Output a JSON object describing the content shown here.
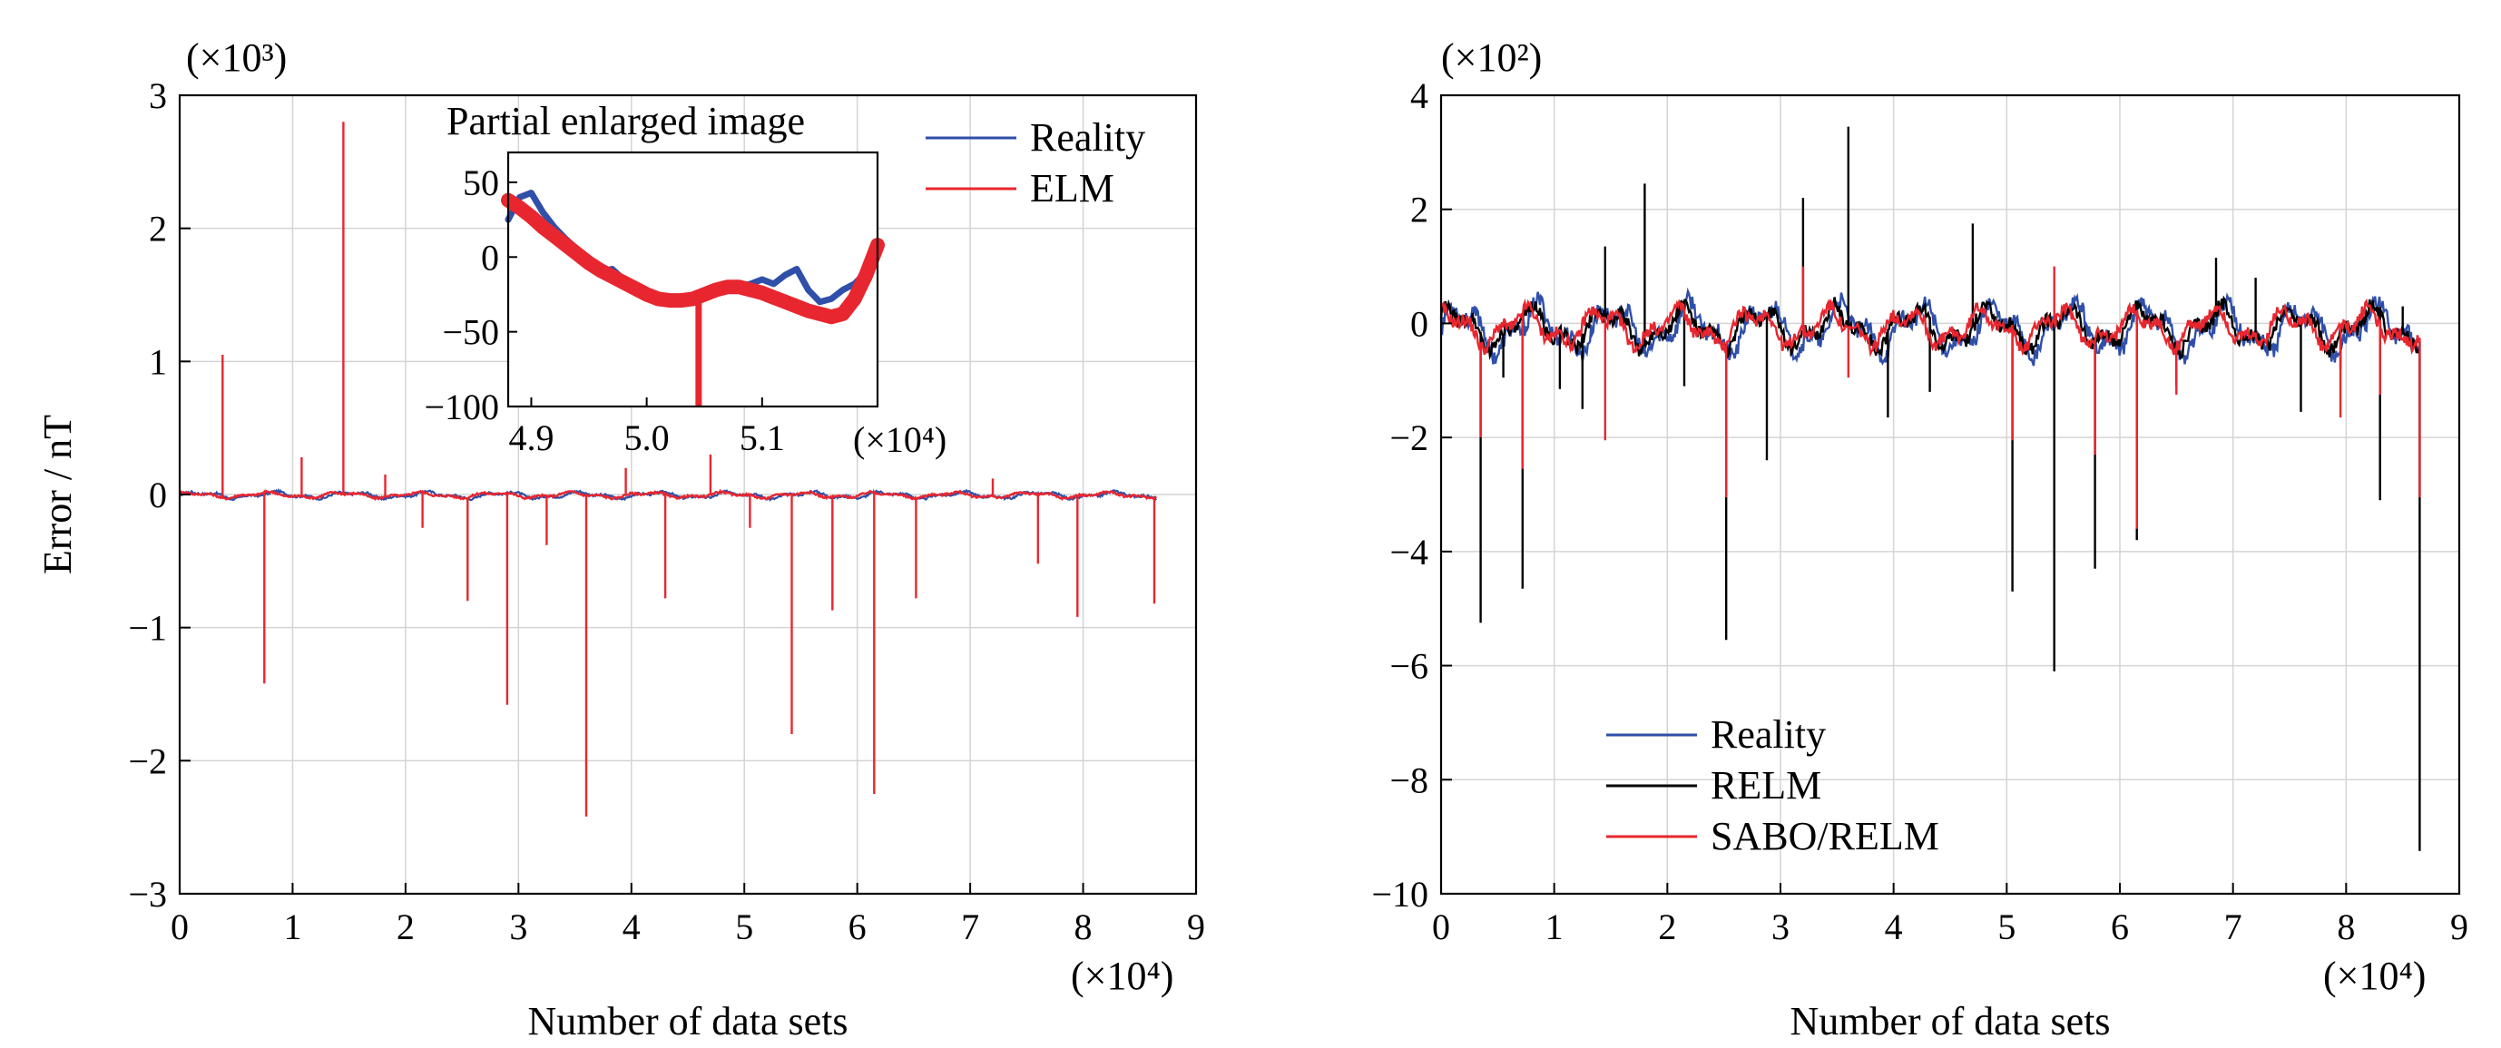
{
  "colors": {
    "reality": "#2f4fa8",
    "elm": "#e8262f",
    "relm": "#000000",
    "sabo": "#e8262f"
  },
  "chart_data": [
    {
      "type": "line",
      "title": "",
      "xlabel": "Number of data sets",
      "ylabel": "Error / nT",
      "x_multiplier": "(×10⁴)",
      "y_multiplier": "(×10³)",
      "xlim": [
        0,
        9
      ],
      "ylim": [
        -3,
        3
      ],
      "xticks": [
        "0",
        "1",
        "2",
        "3",
        "4",
        "5",
        "6",
        "7",
        "8",
        "9"
      ],
      "yticks": [
        "−3",
        "−2",
        "−1",
        "0",
        "1",
        "2",
        "3"
      ],
      "grid": true,
      "legend_position": "top-right",
      "series": [
        {
          "name": "Reality",
          "color": "#2f4fa8",
          "x_range": [
            0,
            8.65
          ],
          "base_amplitude": 0.035
        },
        {
          "name": "ELM",
          "color": "#e8262f",
          "x_range": [
            0,
            8.65
          ],
          "base_amplitude": 0.03,
          "spikes": [
            [
              0.38,
              1.05
            ],
            [
              0.75,
              -1.42
            ],
            [
              1.08,
              0.28
            ],
            [
              1.45,
              2.8
            ],
            [
              1.82,
              0.15
            ],
            [
              2.15,
              -0.25
            ],
            [
              2.55,
              -0.8
            ],
            [
              2.9,
              -1.58
            ],
            [
              3.25,
              -0.38
            ],
            [
              3.6,
              -2.42
            ],
            [
              3.95,
              0.2
            ],
            [
              4.3,
              -0.78
            ],
            [
              4.7,
              0.3
            ],
            [
              5.05,
              -0.25
            ],
            [
              5.42,
              -1.8
            ],
            [
              5.78,
              -0.87
            ],
            [
              6.15,
              -2.25
            ],
            [
              6.52,
              -0.78
            ],
            [
              7.2,
              0.12
            ],
            [
              7.6,
              -0.52
            ],
            [
              7.95,
              -0.92
            ],
            [
              8.63,
              -0.82
            ]
          ]
        }
      ],
      "inset": {
        "title": "Partial enlarged image",
        "x_multiplier": "(×10⁴)",
        "xlim": [
          4.88,
          5.2
        ],
        "ylim": [
          -100,
          70
        ],
        "xticks": [
          "4.9",
          "5.0",
          "5.1"
        ],
        "yticks": [
          "50",
          "0",
          "−50",
          "−100"
        ],
        "series": [
          {
            "name": "Reality",
            "color": "#2f4fa8",
            "points": [
              [
                4.88,
                25
              ],
              [
                4.89,
                40
              ],
              [
                4.9,
                43
              ],
              [
                4.91,
                30
              ],
              [
                4.92,
                20
              ],
              [
                4.93,
                12
              ],
              [
                4.94,
                5
              ],
              [
                4.95,
                -3
              ],
              [
                4.96,
                -10
              ],
              [
                4.97,
                -8
              ],
              [
                4.98,
                -15
              ],
              [
                4.99,
                -22
              ],
              [
                5.0,
                -25
              ],
              [
                5.01,
                -30
              ],
              [
                5.02,
                -28
              ],
              [
                5.03,
                -30
              ],
              [
                5.04,
                -28
              ],
              [
                5.05,
                -26
              ],
              [
                5.06,
                -24
              ],
              [
                5.07,
                -22
              ],
              [
                5.08,
                -20
              ],
              [
                5.09,
                -18
              ],
              [
                5.1,
                -15
              ],
              [
                5.11,
                -18
              ],
              [
                5.12,
                -12
              ],
              [
                5.13,
                -8
              ],
              [
                5.14,
                -22
              ],
              [
                5.15,
                -30
              ],
              [
                5.16,
                -28
              ],
              [
                5.17,
                -22
              ],
              [
                5.18,
                -18
              ],
              [
                5.19,
                -10
              ]
            ]
          },
          {
            "name": "ELM",
            "color": "#e8262f",
            "points": [
              [
                4.88,
                38
              ],
              [
                4.89,
                33
              ],
              [
                4.9,
                27
              ],
              [
                4.91,
                20
              ],
              [
                4.92,
                14
              ],
              [
                4.93,
                8
              ],
              [
                4.94,
                2
              ],
              [
                4.95,
                -4
              ],
              [
                4.96,
                -9
              ],
              [
                4.97,
                -13
              ],
              [
                4.98,
                -17
              ],
              [
                4.99,
                -21
              ],
              [
                5.0,
                -25
              ],
              [
                5.01,
                -28
              ],
              [
                5.02,
                -29
              ],
              [
                5.03,
                -29
              ],
              [
                5.04,
                -28
              ],
              [
                5.05,
                -25
              ],
              [
                5.06,
                -22
              ],
              [
                5.07,
                -20
              ],
              [
                5.08,
                -20
              ],
              [
                5.09,
                -22
              ],
              [
                5.1,
                -24
              ],
              [
                5.11,
                -27
              ],
              [
                5.12,
                -30
              ],
              [
                5.13,
                -33
              ],
              [
                5.14,
                -36
              ],
              [
                5.15,
                -38
              ],
              [
                5.16,
                -40
              ],
              [
                5.17,
                -38
              ],
              [
                5.18,
                -28
              ],
              [
                5.19,
                -12
              ],
              [
                5.2,
                8
              ]
            ],
            "spike": [
              5.045,
              -100
            ]
          }
        ]
      }
    },
    {
      "type": "line",
      "title": "",
      "xlabel": "Number of data sets",
      "ylabel": "",
      "x_multiplier": "(×10⁴)",
      "y_multiplier": "(×10²)",
      "xlim": [
        0,
        9
      ],
      "ylim": [
        -10,
        4
      ],
      "xticks": [
        "0",
        "1",
        "2",
        "3",
        "4",
        "5",
        "6",
        "7",
        "8",
        "9"
      ],
      "yticks": [
        "−10",
        "−8",
        "−6",
        "−4",
        "−2",
        "0",
        "2",
        "4"
      ],
      "grid": true,
      "legend_position": "bottom-left",
      "series": [
        {
          "name": "Reality",
          "color": "#2f4fa8",
          "x_range": [
            0,
            8.65
          ],
          "base_amplitude": 0.6
        },
        {
          "name": "RELM",
          "color": "#000000",
          "x_range": [
            0,
            8.65
          ],
          "base_amplitude": 0.5,
          "spikes": [
            [
              0.05,
              0.3
            ],
            [
              0.35,
              -5.25
            ],
            [
              0.55,
              -0.95
            ],
            [
              0.72,
              -4.65
            ],
            [
              1.05,
              -1.15
            ],
            [
              1.25,
              -1.5
            ],
            [
              1.45,
              1.35
            ],
            [
              1.8,
              2.45
            ],
            [
              2.15,
              -1.1
            ],
            [
              2.52,
              -5.55
            ],
            [
              2.88,
              -2.4
            ],
            [
              3.2,
              2.2
            ],
            [
              3.6,
              3.45
            ],
            [
              3.95,
              -1.65
            ],
            [
              4.32,
              -1.2
            ],
            [
              4.7,
              1.75
            ],
            [
              5.05,
              -4.7
            ],
            [
              5.42,
              -6.1
            ],
            [
              5.78,
              -4.3
            ],
            [
              6.15,
              -3.8
            ],
            [
              6.5,
              -1.1
            ],
            [
              6.85,
              1.15
            ],
            [
              7.2,
              0.8
            ],
            [
              7.6,
              -1.55
            ],
            [
              7.95,
              -0.8
            ],
            [
              8.3,
              -3.1
            ],
            [
              8.5,
              0.3
            ],
            [
              8.65,
              -9.25
            ]
          ]
        },
        {
          "name": "SABO/RELM",
          "color": "#e8262f",
          "x_range": [
            0,
            8.65
          ],
          "base_amplitude": 0.45,
          "spikes": [
            [
              0.35,
              -2.0
            ],
            [
              0.72,
              -2.55
            ],
            [
              1.45,
              -2.05
            ],
            [
              2.52,
              -3.05
            ],
            [
              3.2,
              1.0
            ],
            [
              3.6,
              -0.95
            ],
            [
              5.05,
              -2.05
            ],
            [
              5.42,
              1.0
            ],
            [
              5.78,
              -2.3
            ],
            [
              6.15,
              -3.6
            ],
            [
              6.5,
              -1.25
            ],
            [
              7.95,
              -1.65
            ],
            [
              8.3,
              -1.25
            ],
            [
              8.65,
              -3.05
            ]
          ]
        }
      ]
    }
  ]
}
